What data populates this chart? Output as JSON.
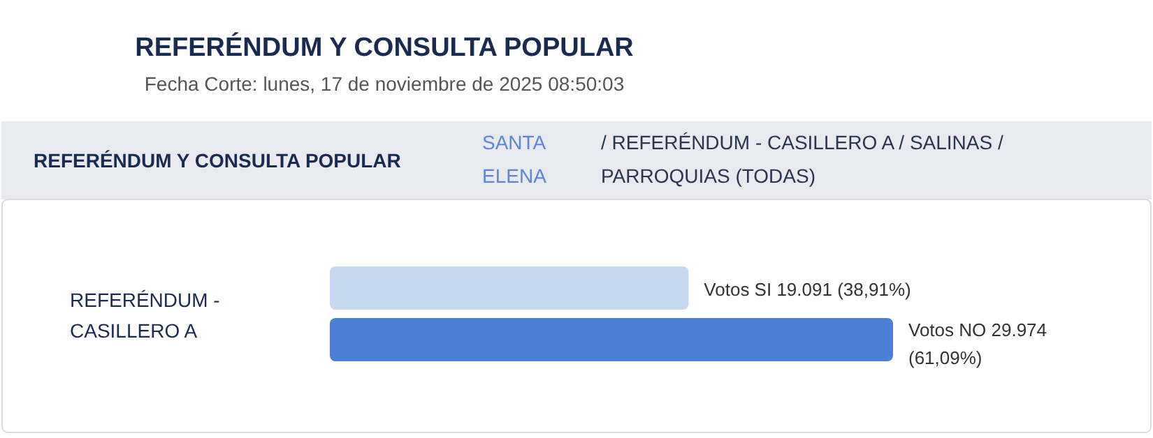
{
  "chart_data": {
    "type": "bar",
    "orientation": "horizontal",
    "title": "REFERÉNDUM Y CONSULTA POPULAR",
    "subtitle": "Fecha Corte: lunes, 17 de noviembre de 2025 08:50:03",
    "annotations": [
      "REFERÉNDUM Y CONSULTA POPULAR",
      "SANTA ELENA",
      "/ REFERÉNDUM - CASILLERO A / SALINAS / PARROQUIAS (TODAS)"
    ],
    "categories": [
      "REFERÉNDUM - CASILLERO A"
    ],
    "series": [
      {
        "color": "#c6d9f1",
        "values": [
          19091
        ],
        "value_labels": [
          "Votos SI 19.091 (38,91%)"
        ]
      },
      {
        "color": "#4a7fd4",
        "values": [
          29974
        ],
        "value_labels": [
          "Votos NO 29.974 (61,09%)"
        ]
      }
    ]
  }
}
